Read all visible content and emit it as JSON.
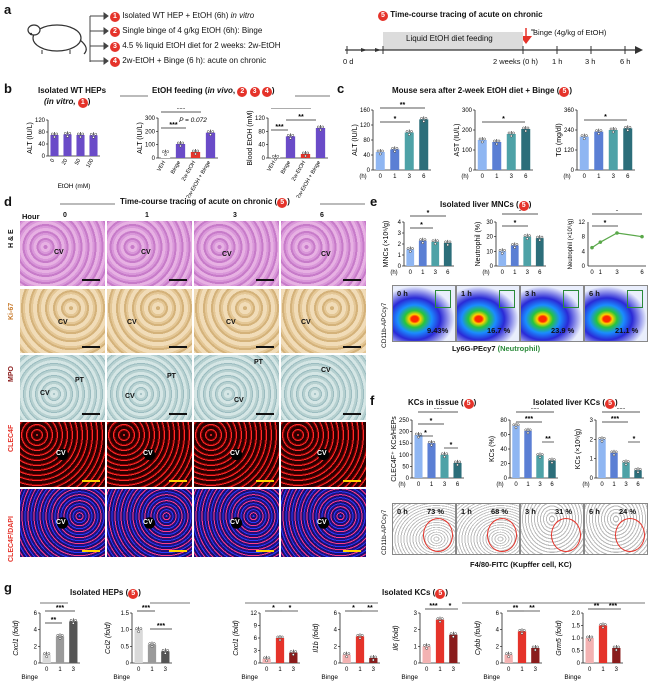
{
  "panels": {
    "a": "a",
    "b": "b",
    "c": "c",
    "d": "d",
    "e": "e",
    "f": "f",
    "g": "g"
  },
  "a": {
    "steps": [
      {
        "num": "1",
        "text_pre": "Isolated WT HEP + EtOH (6h) ",
        "text_it": "in vitro"
      },
      {
        "num": "2",
        "text_pre": "Single binge of 4 g/kg EtOH (6h): Binge",
        "text_it": ""
      },
      {
        "num": "3",
        "text_pre": "4.5 % liquid EtOH diet for 2 weeks: 2w-EtOH",
        "text_it": ""
      },
      {
        "num": "4",
        "text_pre": "2w-EtOH + Binge (6 h): acute on chronic",
        "text_it": ""
      }
    ],
    "timeline_title": "Time-course tracing of acute on chronic",
    "timeline_num": "5",
    "binge_label": "Binge (4g/kg of EtOH)",
    "feeding_label": "Liquid EtOH diet feeding",
    "ticks": [
      "0 d",
      "2 weeks (0 h)",
      "1 h",
      "3 h",
      "6 h"
    ]
  },
  "b": {
    "left_title": "Isolated WT HEPs",
    "left_sub": "(in vitro,",
    "left_num": "1",
    "right_title_pre": "EtOH feeding (",
    "right_title_it": "in vivo",
    "right_nums": [
      "2",
      "3",
      "4"
    ],
    "alt1_ylabel": "ALT (IU/L)",
    "alt1_xlabel": "EtOH (mM)",
    "alt1_cats": [
      "0",
      "20",
      "50",
      "100"
    ],
    "alt1_vals": [
      70,
      72,
      70,
      69
    ],
    "alt1_yticks": [
      "0",
      "40",
      "80",
      "120"
    ],
    "alt2_ylabel": "ALT (IU/L)",
    "alt2_yticks": [
      "0",
      "100",
      "200",
      "300"
    ],
    "alt2_cats": [
      "VEH",
      "Binge",
      "2w-EtOH",
      "2w-EtOH + Binge"
    ],
    "alt2_vals": [
      40,
      105,
      45,
      190
    ],
    "alt2_p": "P = 0.072",
    "be_ylabel": "Blood EtOH (mM)",
    "be_yticks": [
      "0",
      "40",
      "80",
      "120"
    ],
    "be_vals": [
      2,
      65,
      12,
      90
    ],
    "stars3": "***",
    "stars2": "**",
    "stars1": "*"
  },
  "c": {
    "title": "Mouse sera after 2-week EtOH diet + Binge (",
    "num": "5",
    "charts": [
      {
        "ylabel": "ALT (IU/L)",
        "yticks": [
          "0",
          "40",
          "80",
          "120",
          "160"
        ],
        "ymax": 160,
        "vals": [
          48,
          55,
          100,
          135
        ],
        "xlabel": "(h)"
      },
      {
        "ylabel": "AST (IU/L)",
        "yticks": [
          "0",
          "100",
          "200",
          "300"
        ],
        "ymax": 300,
        "vals": [
          150,
          140,
          180,
          205
        ],
        "xlabel": "(h)"
      },
      {
        "ylabel": "TG (mg/dl)",
        "yticks": [
          "0",
          "120",
          "240",
          "360"
        ],
        "ymax": 360,
        "vals": [
          200,
          230,
          240,
          250
        ],
        "xlabel": "(h)"
      }
    ],
    "cats": [
      "0",
      "1",
      "3",
      "6"
    ]
  },
  "d": {
    "title": "Time-course tracing of acute on chronic (",
    "num": "5",
    "hour_label": "Hour",
    "hours": [
      "0",
      "1",
      "3",
      "6"
    ],
    "rows": [
      "H & E",
      "Ki-67",
      "MPO",
      "CLEC4F",
      "CLEC4F/DAPI"
    ],
    "cv": "CV",
    "pt": "PT"
  },
  "e": {
    "title": "Isolated liver MNCs (",
    "num": "5",
    "mnc_ylabel": "MNCs (×10⁶/g)",
    "neu_ylabel": "Neutrophil (%)",
    "neu2_ylabel": "Neutrophil (×10⁶/g)",
    "cats": [
      "0",
      "1",
      "3",
      "6"
    ],
    "xlabel": "(h)",
    "mnc_vals": [
      1.5,
      2.3,
      2.2,
      2.1
    ],
    "mnc_yticks": [
      "0",
      "1",
      "2",
      "3",
      "4"
    ],
    "neu_vals": [
      10,
      14,
      20,
      19
    ],
    "neu_yticks": [
      "0",
      "10",
      "20",
      "30"
    ],
    "neu2_vals": [
      5,
      6.5,
      9,
      8
    ],
    "neu2_yticks": [
      "0",
      "4",
      "8",
      "12"
    ],
    "flow": [
      {
        "time": "0 h",
        "pct": "9.43%"
      },
      {
        "time": "1 h",
        "pct": "16.7 %"
      },
      {
        "time": "3 h",
        "pct": "23.9 %"
      },
      {
        "time": "6 h",
        "pct": "21.1 %"
      }
    ],
    "flow_y": "CD11b-APCcy7",
    "flow_x": "Ly6G-PEcy7",
    "flow_x2": "(Neutrophil)"
  },
  "f": {
    "left_title": "KCs in tissue (",
    "right_title": "Isolated liver KCs (",
    "num": "5",
    "kc1_ylabel": "CLEC4F⁺ KCs/HEPs",
    "kc1_yticks": [
      "0",
      "50",
      "100",
      "150",
      "200",
      "250"
    ],
    "kc1_vals": [
      185,
      150,
      100,
      65
    ],
    "kc2_ylabel": "KCs (%)",
    "kc2_yticks": [
      "0",
      "20",
      "40",
      "60",
      "80"
    ],
    "kc2_vals": [
      72,
      65,
      31,
      24
    ],
    "kc3_ylabel": "KCs (×10⁶/g)",
    "kc3_yticks": [
      "0",
      "1",
      "2",
      "3"
    ],
    "kc3_vals": [
      2.0,
      1.3,
      0.8,
      0.4
    ],
    "cats": [
      "0",
      "1",
      "3",
      "6"
    ],
    "xlabel": "(h)",
    "flow": [
      {
        "time": "0 h",
        "pct": "73 %"
      },
      {
        "time": "1 h",
        "pct": "68 %"
      },
      {
        "time": "3 h",
        "pct": "31 %"
      },
      {
        "time": "6 h",
        "pct": "24 %"
      }
    ],
    "flow_y": "CD11b-APCcy7",
    "flow_x": "F4/80-FITC (Kupffer cell, KC)"
  },
  "g": {
    "hep_title": "Isolated HEPs (",
    "kc_title": "Isolated KCs (",
    "num": "5",
    "binge": "Binge",
    "unit": "(fold)",
    "cats": [
      "0",
      "1",
      "3"
    ],
    "genes": [
      {
        "name": "Cxcl1",
        "yticks": [
          "0",
          "2",
          "4",
          "6"
        ],
        "ymax": 6,
        "vals": [
          1,
          3.2,
          5.0
        ]
      },
      {
        "name": "Ccl2",
        "yticks": [
          "0",
          "0.5",
          "1.0",
          "1.5"
        ],
        "ymax": 1.5,
        "vals": [
          1.0,
          0.55,
          0.35
        ]
      },
      {
        "name": "Cxcl1",
        "yticks": [
          "0",
          "3",
          "6",
          "9",
          "12"
        ],
        "ymax": 12,
        "vals": [
          1,
          6,
          2.5
        ]
      },
      {
        "name": "Il1b",
        "yticks": [
          "0",
          "2",
          "4",
          "6"
        ],
        "ymax": 6,
        "vals": [
          1,
          3.2,
          0.6
        ]
      },
      {
        "name": "Il6",
        "yticks": [
          "0",
          "1",
          "2",
          "3"
        ],
        "ymax": 3,
        "vals": [
          1,
          2.6,
          1.7
        ]
      },
      {
        "name": "Cybb",
        "yticks": [
          "0",
          "2",
          "4",
          "6"
        ],
        "ymax": 6,
        "vals": [
          1,
          3.8,
          1.8
        ]
      },
      {
        "name": "Grm5",
        "yticks": [
          "0",
          "0.5",
          "1.0",
          "1.5",
          "2.0"
        ],
        "ymax": 2,
        "vals": [
          1,
          1.5,
          0.6
        ]
      }
    ]
  },
  "colors": {
    "red": "#e5332a",
    "blue": "#5b7fd4",
    "lightblue": "#8fb6f2",
    "teal": "#2c6e7a",
    "teal2": "#4ea2a7",
    "purple": "#6a4bc8",
    "green": "#5aa84a",
    "gray": "#777777"
  }
}
